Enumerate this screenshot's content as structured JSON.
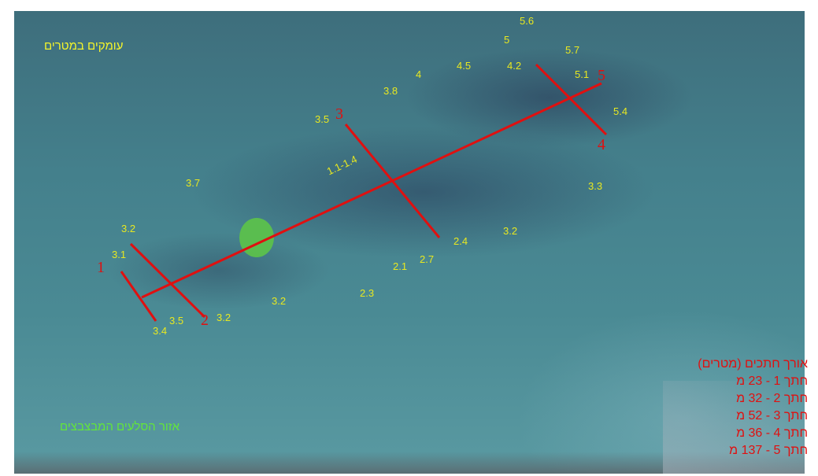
{
  "map": {
    "depth_title": "עומקים במטרים",
    "rock_area_label": "אזור הסלעים המבצבצים",
    "line_color": "#e01010",
    "depth_label_color": "#e8e820",
    "rock_area_color": "#5cc24a",
    "section_numbers": [
      "1",
      "2",
      "3",
      "4",
      "5"
    ],
    "depth_labels": [
      "5.6",
      "5",
      "5.7",
      "4.5",
      "4.2",
      "5.1",
      "4",
      "3.8",
      "5.4",
      "3.5",
      "1.1-1.4",
      "3.7",
      "3.3",
      "3.2",
      "3.2",
      "2.4",
      "3.1",
      "2.7",
      "2.1",
      "2.3",
      "3.2",
      "3.5",
      "3.2",
      "3.4"
    ],
    "lengths_title": "אורך חתכים (מטרים)",
    "lengths": [
      "חתך 1 - 23 מ",
      "חתך 2 - 32 מ",
      "חתך 3 - 52 מ",
      "חתך 4 - 36 מ",
      "חתך 5 - 137 מ"
    ]
  }
}
